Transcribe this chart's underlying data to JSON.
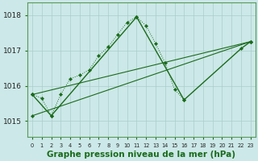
{
  "background_color": "#cce8e8",
  "grid_color": "#aacccc",
  "line_color": "#1a6b1a",
  "xlabel": "Graphe pression niveau de la mer (hPa)",
  "xlabel_fontsize": 7.5,
  "ylabel_ticks": [
    1015,
    1016,
    1017,
    1018
  ],
  "xlim": [
    -0.5,
    23.5
  ],
  "ylim": [
    1014.55,
    1018.35
  ],
  "hours": [
    0,
    1,
    2,
    3,
    4,
    5,
    6,
    7,
    8,
    9,
    10,
    11,
    12,
    13,
    14,
    15,
    16,
    17,
    18,
    19,
    20,
    21,
    22,
    23
  ],
  "series_dotted": [
    1015.75,
    1015.65,
    1015.15,
    1015.75,
    1016.2,
    1016.3,
    1016.45,
    1016.85,
    1017.1,
    1017.45,
    1017.8,
    1017.95,
    1017.7,
    1017.2,
    1016.65,
    1015.9,
    1015.6,
    null,
    null,
    null,
    null,
    null,
    null,
    null
  ],
  "series_diag1": [
    1015.15,
    null,
    null,
    null,
    null,
    null,
    null,
    null,
    null,
    null,
    null,
    null,
    null,
    null,
    null,
    null,
    null,
    null,
    null,
    null,
    null,
    null,
    null,
    1017.25
  ],
  "series_diag2": [
    1015.75,
    null,
    null,
    null,
    null,
    null,
    null,
    null,
    null,
    null,
    null,
    null,
    null,
    null,
    null,
    null,
    null,
    null,
    null,
    null,
    null,
    null,
    null,
    1017.25
  ],
  "series_main": [
    1015.75,
    null,
    1015.15,
    null,
    null,
    null,
    null,
    null,
    null,
    null,
    null,
    1017.95,
    null,
    null,
    null,
    null,
    1015.6,
    null,
    null,
    null,
    null,
    null,
    1017.05,
    1017.25
  ]
}
